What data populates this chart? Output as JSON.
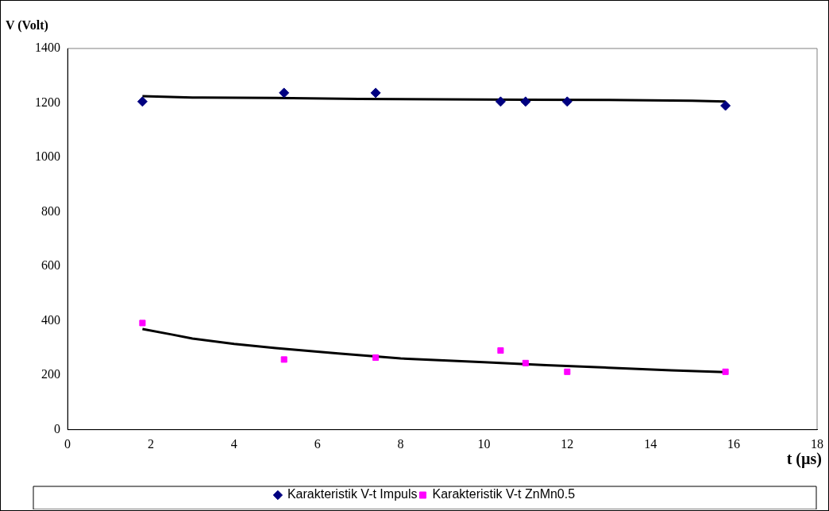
{
  "chart_data": {
    "type": "scatter",
    "xlabel": "t (µs)",
    "ylabel": "V (Volt)",
    "xlim": [
      0,
      18
    ],
    "xticks": [
      0,
      2,
      4,
      6,
      8,
      10,
      12,
      14,
      16,
      18
    ],
    "ylim": [
      0,
      1400
    ],
    "yticks": [
      0,
      200,
      400,
      600,
      800,
      1000,
      1200,
      1400
    ],
    "grid": false,
    "legend": "bottom",
    "series": [
      {
        "name": "Karakteristik V-t Impuls",
        "color": "#000080",
        "marker": "diamond",
        "x": [
          1.8,
          5.2,
          7.4,
          10.4,
          11.0,
          12.0,
          15.8
        ],
        "values": [
          1205,
          1237,
          1237,
          1205,
          1205,
          1205,
          1190
        ]
      },
      {
        "name": "Karakteristik V-t ZnMn0.5",
        "color": "#ff00ff",
        "marker": "square",
        "x": [
          1.8,
          5.2,
          7.4,
          10.4,
          11.0,
          12.0,
          15.8
        ],
        "values": [
          392,
          258,
          265,
          291,
          245,
          213,
          213
        ]
      },
      {
        "type": "line",
        "color": "#000000",
        "marker": "none",
        "x": [
          1.8,
          3,
          5,
          7,
          9,
          11,
          13,
          15,
          15.8
        ],
        "values": [
          1225,
          1220,
          1218,
          1215,
          1213,
          1212,
          1211,
          1208,
          1205
        ]
      },
      {
        "type": "line",
        "color": "#000000",
        "marker": "none",
        "x": [
          1.8,
          2.5,
          3,
          4,
          5,
          6.5,
          8,
          10,
          11.5,
          13,
          14.5,
          15.8
        ],
        "values": [
          370,
          350,
          335,
          315,
          300,
          280,
          262,
          248,
          237,
          228,
          218,
          212
        ]
      }
    ]
  }
}
